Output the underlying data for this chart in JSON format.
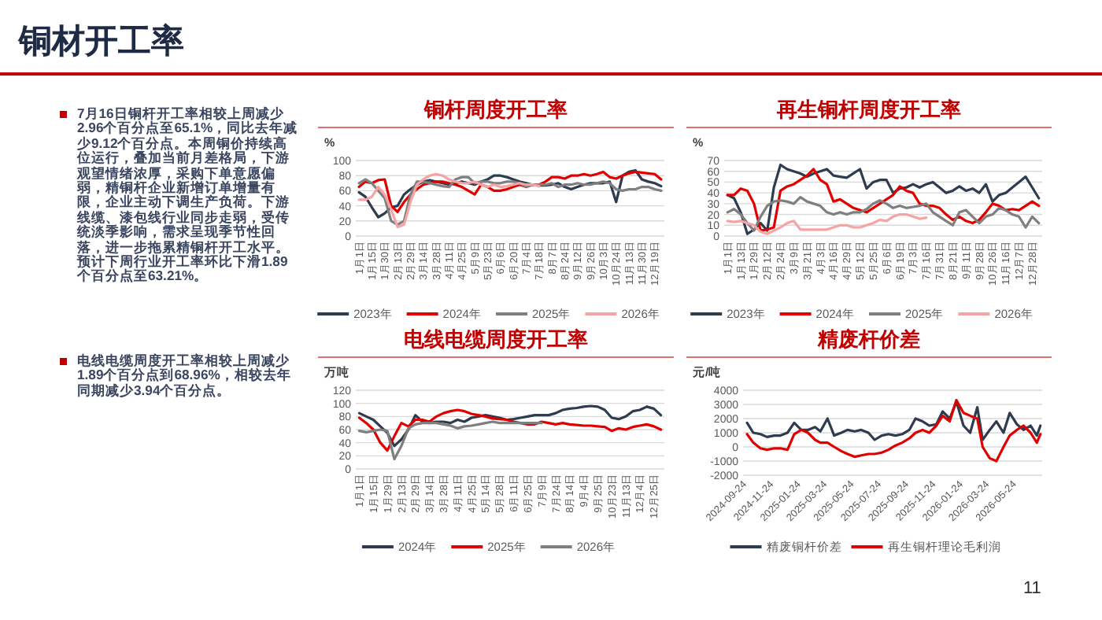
{
  "chart_data": [
    {
      "type": "other",
      "title": "铜材开工率",
      "annotations": [
        "7月16日铜杆开工率相较上周减少2.96个百分点至65.1%，同比去年减少9.12个百分点。本周铜价持续高位运行，叠加当前月差格局，下游观望情绪浓厚，采购下单意愿偏弱，精铜杆企业新增订单增量有限，企业主动下调生产负荷。下游线缆、漆包线行业同步走弱，受传统淡季影响，需求呈现季节性回落，进一步拖累精铜杆开工水平。预计下周行业开工率环比下滑1.89个百分点至63.21%。",
        "电线电缆周度开工率相较上周减少1.89个百分点到68.96%，相较去年同期减少3.94个百分点。",
        "11"
      ]
    },
    {
      "type": "line",
      "title": "铜杆周度开工率",
      "ylabel": "%",
      "ylim": [
        0,
        100
      ],
      "yticks": [
        0,
        20,
        40,
        60,
        80,
        100
      ],
      "grid": "y",
      "legend": "bottom",
      "categories": [
        "1月1日",
        null,
        "1月15日",
        null,
        "1月30日",
        null,
        "2月13日",
        null,
        "2月29日",
        null,
        "3月14日",
        null,
        "3月28日",
        null,
        "4月11日",
        null,
        "4月25日",
        null,
        "5月9日",
        null,
        "5月23日",
        null,
        "6月6日",
        null,
        "6月20日",
        null,
        "7月4日",
        null,
        "7月18日",
        null,
        "8月7日",
        null,
        "8月24日",
        null,
        "9月12日",
        null,
        "9月26日",
        null,
        "10月3日",
        null,
        "10月24日",
        null,
        "11月13日",
        null,
        "11月30日",
        null,
        "12月19日",
        null
      ],
      "series": [
        {
          "name": "2023年",
          "color": "#2f3b4e",
          "values": [
            58,
            52,
            38,
            25,
            30,
            38,
            40,
            55,
            62,
            68,
            72,
            74,
            72,
            70,
            68,
            70,
            72,
            70,
            68,
            72,
            75,
            80,
            80,
            78,
            75,
            72,
            70,
            68,
            67,
            67,
            68,
            70,
            65,
            62,
            65,
            68,
            70,
            70,
            70,
            72,
            45,
            80,
            85,
            87,
            75,
            72,
            70,
            66
          ]
        },
        {
          "name": "2024年",
          "color": "#e00000",
          "values": [
            65,
            72,
            70,
            74,
            75,
            40,
            32,
            45,
            55,
            62,
            68,
            70,
            72,
            72,
            70,
            68,
            65,
            60,
            55,
            68,
            65,
            60,
            60,
            62,
            65,
            68,
            65,
            68,
            68,
            72,
            78,
            78,
            76,
            80,
            80,
            82,
            80,
            82,
            85,
            78,
            76,
            80,
            83,
            85,
            84,
            83,
            82,
            75
          ]
        },
        {
          "name": "2025年",
          "color": "#7f7f7f",
          "values": [
            70,
            75,
            70,
            60,
            50,
            20,
            15,
            20,
            55,
            72,
            72,
            70,
            68,
            66,
            65,
            75,
            78,
            78,
            70,
            72,
            72,
            70,
            70,
            72,
            72,
            70,
            65,
            68,
            68,
            68,
            70,
            65,
            68,
            68,
            70,
            68,
            68,
            70,
            72,
            70,
            62,
            60,
            62,
            62,
            65,
            65,
            62,
            60
          ]
        },
        {
          "name": "2026年",
          "color": "#f5a3a3",
          "values": [
            48,
            48,
            52,
            65,
            55,
            35,
            12,
            15,
            45,
            68,
            75,
            80,
            82,
            80,
            75,
            72,
            70,
            70,
            72,
            68,
            65,
            68,
            65,
            66,
            68,
            70,
            68,
            68,
            66,
            null,
            null,
            null,
            null,
            null,
            null,
            null,
            null,
            null,
            null,
            null,
            null,
            null,
            null,
            null,
            null,
            null,
            null,
            null
          ]
        }
      ]
    },
    {
      "type": "line",
      "title": "再生铜杆周度开工率",
      "ylabel": "%",
      "ylim": [
        0,
        70
      ],
      "yticks": [
        0,
        10,
        20,
        30,
        40,
        50,
        60,
        70
      ],
      "grid": "y",
      "legend": "bottom",
      "categories": [
        "1月1日",
        null,
        "1月13日",
        null,
        "1月29日",
        null,
        "2月12日",
        null,
        "2月24日",
        null,
        "3月9日",
        null,
        "3月21日",
        null,
        "4月3日",
        null,
        "4月16日",
        null,
        "4月29日",
        null,
        "5月12日",
        null,
        "5月25日",
        null,
        "6月6日",
        null,
        "6月19日",
        null,
        "7月3日",
        null,
        "7月16日",
        null,
        "7月31日",
        null,
        "8月21日",
        null,
        "9月11日",
        null,
        "9月28日",
        null,
        "10月26日",
        null,
        "11月16日",
        null,
        "12月7日",
        null,
        "12月28日",
        null
      ],
      "series": [
        {
          "name": "2023年",
          "color": "#2f3b4e",
          "values": [
            38,
            35,
            22,
            2,
            6,
            12,
            5,
            45,
            66,
            62,
            60,
            58,
            55,
            58,
            60,
            62,
            56,
            55,
            54,
            58,
            62,
            44,
            50,
            52,
            52,
            40,
            44,
            45,
            48,
            45,
            48,
            50,
            45,
            40,
            42,
            46,
            42,
            44,
            40,
            48,
            32,
            38,
            40,
            45,
            50,
            55,
            45,
            35
          ]
        },
        {
          "name": "2024年",
          "color": "#e00000",
          "values": [
            38,
            38,
            44,
            42,
            30,
            5,
            6,
            8,
            42,
            46,
            48,
            52,
            56,
            62,
            52,
            48,
            32,
            34,
            30,
            26,
            24,
            22,
            26,
            30,
            34,
            38,
            46,
            42,
            40,
            30,
            28,
            28,
            26,
            20,
            15,
            18,
            14,
            12,
            15,
            22,
            30,
            28,
            24,
            25,
            24,
            28,
            32,
            28
          ]
        },
        {
          "name": "2025年",
          "color": "#7f7f7f",
          "values": [
            22,
            25,
            20,
            12,
            5,
            18,
            28,
            32,
            33,
            32,
            30,
            36,
            32,
            30,
            28,
            22,
            20,
            22,
            20,
            22,
            22,
            25,
            30,
            33,
            30,
            26,
            28,
            26,
            27,
            28,
            30,
            22,
            18,
            14,
            10,
            22,
            24,
            18,
            12,
            18,
            20,
            26,
            24,
            20,
            18,
            8,
            18,
            12
          ]
        },
        {
          "name": "2026年",
          "color": "#f5a3a3",
          "values": [
            14,
            13,
            14,
            12,
            10,
            4,
            2,
            5,
            8,
            12,
            14,
            6,
            6,
            6,
            6,
            6,
            8,
            10,
            10,
            8,
            8,
            10,
            12,
            15,
            14,
            18,
            20,
            20,
            18,
            16,
            17,
            null,
            null,
            null,
            null,
            null,
            null,
            null,
            null,
            null,
            null,
            null,
            null,
            null,
            null,
            null,
            null,
            null
          ]
        }
      ]
    },
    {
      "type": "line",
      "title": "电线电缆周度开工率",
      "ylabel": "万吨",
      "ylim": [
        0,
        120
      ],
      "yticks": [
        0,
        20,
        40,
        60,
        80,
        100,
        120
      ],
      "grid": "y",
      "legend": "bottom",
      "categories": [
        "1月1日",
        null,
        "1月15日",
        null,
        "1月29日",
        null,
        "2月13日",
        null,
        "2月29日",
        null,
        "3月14日",
        null,
        "3月28日",
        null,
        "4月11日",
        null,
        "4月25日",
        null,
        "5月14日",
        null,
        "5月28日",
        null,
        "6月11日",
        null,
        "6月25日",
        null,
        "7月9日",
        null,
        "7月24日",
        null,
        "8月14日",
        null,
        "9月4日",
        null,
        "9月25日",
        null,
        "10月23日",
        null,
        "11月13日",
        null,
        "12月4日",
        null,
        "12月25日",
        null
      ],
      "series": [
        {
          "name": "2024年",
          "color": "#2f3b4e",
          "values": [
            85,
            80,
            75,
            65,
            55,
            35,
            45,
            60,
            82,
            72,
            70,
            72,
            72,
            70,
            75,
            72,
            78,
            80,
            82,
            80,
            78,
            75,
            76,
            78,
            80,
            82,
            82,
            82,
            85,
            90,
            92,
            93,
            95,
            96,
            95,
            90,
            78,
            76,
            80,
            88,
            90,
            95,
            92,
            82
          ]
        },
        {
          "name": "2025年",
          "color": "#e00000",
          "values": [
            78,
            70,
            60,
            40,
            28,
            50,
            70,
            65,
            75,
            75,
            72,
            80,
            85,
            88,
            90,
            88,
            84,
            82,
            80,
            77,
            76,
            75,
            72,
            70,
            68,
            68,
            72,
            70,
            68,
            70,
            68,
            67,
            66,
            66,
            65,
            64,
            58,
            62,
            60,
            64,
            66,
            68,
            65,
            60
          ]
        },
        {
          "name": "2026年",
          "color": "#7f7f7f",
          "values": [
            58,
            56,
            58,
            60,
            58,
            15,
            35,
            62,
            68,
            70,
            70,
            70,
            68,
            66,
            62,
            65,
            66,
            68,
            70,
            72,
            70,
            70,
            70,
            70,
            70,
            70,
            70,
            null,
            null,
            null,
            null,
            null,
            null,
            null,
            null,
            null,
            null,
            null,
            null,
            null,
            null,
            null,
            null,
            null
          ]
        }
      ]
    },
    {
      "type": "line",
      "title": "精废杆价差",
      "ylabel": "元/吨",
      "ylim": [
        -2000,
        4000
      ],
      "yticks": [
        -2000,
        -1000,
        0,
        1000,
        2000,
        3000,
        4000
      ],
      "grid": "y",
      "legend": "bottom",
      "xlim": [
        "2024-09-15",
        "2026-07-20"
      ],
      "xticks": [
        "2024-09-24",
        "2024-11-24",
        "2025-01-24",
        "2025-03-24",
        "2025-05-24",
        "2025-07-24",
        "2025-09-24",
        "2025-11-24",
        "2026-01-24",
        "2026-03-24",
        "2026-05-24"
      ],
      "x": [
        "2024-09-24",
        "2024-10-08",
        "2024-10-24",
        "2024-11-08",
        "2024-11-24",
        "2024-12-08",
        "2024-12-24",
        "2025-01-08",
        "2025-01-24",
        "2025-02-08",
        "2025-02-24",
        "2025-03-08",
        "2025-03-24",
        "2025-04-08",
        "2025-04-24",
        "2025-05-08",
        "2025-05-24",
        "2025-06-08",
        "2025-06-24",
        "2025-07-08",
        "2025-07-24",
        "2025-08-08",
        "2025-08-24",
        "2025-09-08",
        "2025-09-24",
        "2025-10-08",
        "2025-10-24",
        "2025-11-08",
        "2025-11-24",
        "2025-12-08",
        "2025-12-24",
        "2026-01-08",
        "2026-01-24",
        "2026-02-08",
        "2026-02-24",
        "2026-03-08",
        "2026-03-24",
        "2026-04-08",
        "2026-04-24",
        "2026-05-08",
        "2026-05-24",
        "2026-06-08",
        "2026-06-24",
        "2026-07-08",
        "2026-07-16"
      ],
      "series": [
        {
          "name": "精废铜杆价差",
          "color": "#2f3b4e",
          "values": [
            1700,
            1000,
            900,
            700,
            800,
            800,
            1000,
            1700,
            1200,
            1200,
            1400,
            1100,
            2000,
            800,
            1000,
            1200,
            1100,
            1200,
            1000,
            500,
            800,
            900,
            800,
            900,
            1200,
            2000,
            1800,
            1500,
            1600,
            2500,
            2000,
            3200,
            1500,
            1000,
            2800,
            500,
            1200,
            1800,
            1000,
            2400,
            1600,
            1200,
            1500,
            800,
            1500
          ]
        },
        {
          "name": "再生铜杆理论毛利润",
          "color": "#e00000",
          "values": [
            900,
            300,
            -100,
            -200,
            -100,
            -100,
            -200,
            900,
            1200,
            1000,
            500,
            300,
            300,
            0,
            -300,
            -500,
            -700,
            -600,
            -500,
            -500,
            -400,
            -200,
            100,
            300,
            600,
            1000,
            1200,
            1000,
            1500,
            2200,
            1800,
            3300,
            2400,
            2200,
            2000,
            0,
            -800,
            -1000,
            0,
            800,
            1200,
            1500,
            1000,
            300,
            900
          ]
        }
      ]
    }
  ]
}
